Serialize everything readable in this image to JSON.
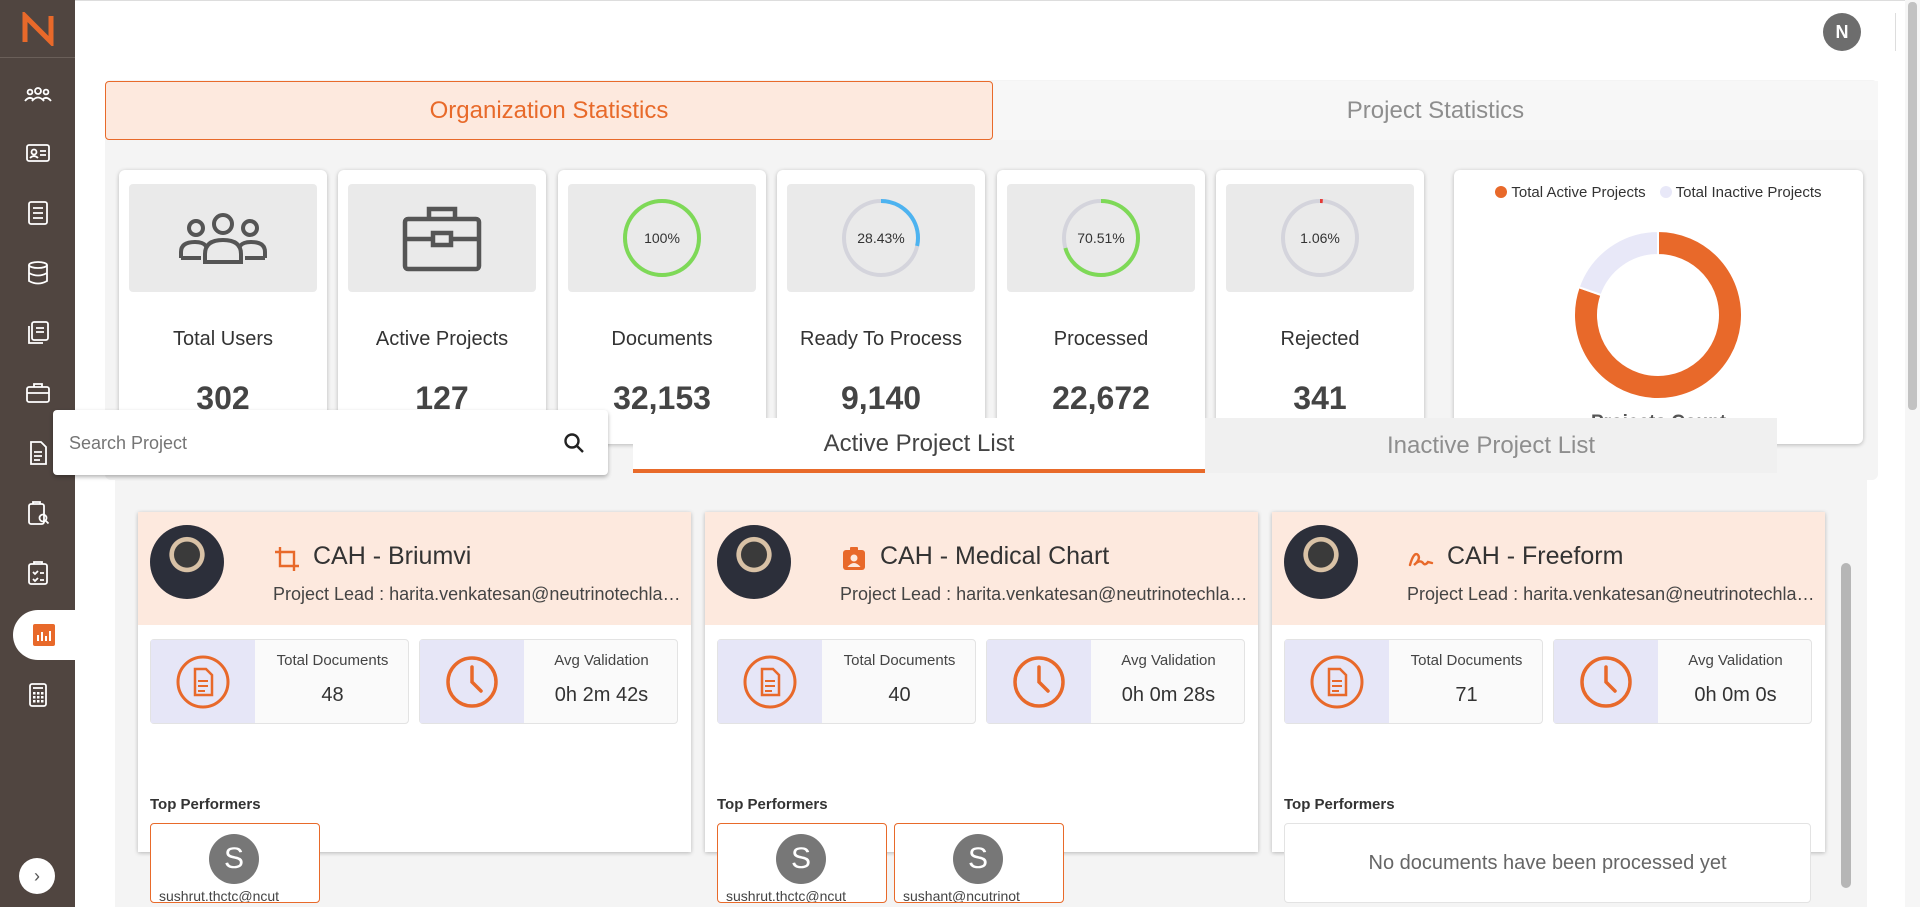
{
  "topbar": {
    "user_initial": "N"
  },
  "tabs": {
    "org": "Organization Statistics",
    "project": "Project Statistics"
  },
  "stats": [
    {
      "label": "Total Users",
      "value": "302",
      "icon": "users-icon"
    },
    {
      "label": "Active Projects",
      "value": "127",
      "icon": "briefcase-icon"
    },
    {
      "label": "Documents",
      "value": "32,153",
      "percent_text": "100%",
      "percent": 100,
      "ring_color": "#7ed957"
    },
    {
      "label": "Ready To Process",
      "value": "9,140",
      "percent_text": "28.43%",
      "percent": 28.43,
      "ring_color": "#4db3f0"
    },
    {
      "label": "Processed",
      "value": "22,672",
      "percent_text": "70.51%",
      "percent": 70.51,
      "ring_color": "#7ed957"
    },
    {
      "label": "Rejected",
      "value": "341",
      "percent_text": "1.06%",
      "percent": 1.06,
      "ring_color": "#e53935"
    }
  ],
  "chart_data": {
    "type": "pie",
    "title": "Projects Count",
    "legend_position": "top",
    "categories": [
      "Total Active Projects",
      "Total Inactive Projects"
    ],
    "values": [
      127,
      31
    ],
    "colors": [
      "#e8692a",
      "#e8e8f8"
    ]
  },
  "search": {
    "placeholder": "Search Project",
    "value": "Search Project"
  },
  "list_tabs": {
    "active": "Active Project List",
    "inactive": "Inactive Project List"
  },
  "projects": [
    {
      "name": "CAH - Briumvi",
      "lead": "Project Lead : harita.venkatesan@neutrinotechlabs.com",
      "total_documents_label": "Total Documents",
      "total_documents": "48",
      "avg_validation_label": "Avg Validation",
      "avg_validation": "0h 2m 42s",
      "top_performers_label": "Top Performers",
      "performers": [
        {
          "initial": "S",
          "email": "sushrut.thctc@ncut"
        }
      ]
    },
    {
      "name": "CAH - Medical Chart",
      "lead": "Project Lead : harita.venkatesan@neutrinotechlabs.com",
      "total_documents_label": "Total Documents",
      "total_documents": "40",
      "avg_validation_label": "Avg Validation",
      "avg_validation": "0h 0m 28s",
      "top_performers_label": "Top Performers",
      "performers": [
        {
          "initial": "S",
          "email": "sushrut.thctc@ncut"
        },
        {
          "initial": "S",
          "email": "sushant@ncutrinot"
        }
      ]
    },
    {
      "name": "CAH - Freeform",
      "lead": "Project Lead : harita.venkatesan@neutrinotechlabs.com",
      "total_documents_label": "Total Documents",
      "total_documents": "71",
      "avg_validation_label": "Avg Validation",
      "avg_validation": "0h 0m 0s",
      "top_performers_label": "Top Performers",
      "empty_message": "No documents have been processed yet"
    }
  ],
  "colors": {
    "accent": "#e8692a",
    "sidebar": "#504540",
    "header_bg": "#fde9de"
  }
}
